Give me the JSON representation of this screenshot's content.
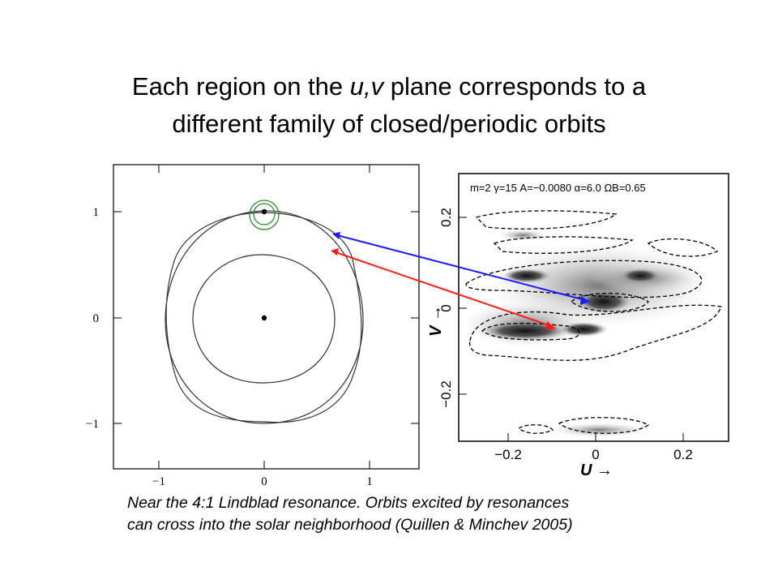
{
  "slide": {
    "title_line1_prefix": "Each region on the ",
    "title_line1_emph": "u,v",
    "title_line1_suffix": " plane corresponds to a",
    "title_line2": "different family of closed/periodic orbits",
    "caption_line1": "Near the 4:1 Lindblad resonance. Orbits excited by resonances",
    "caption_line2": "can cross into the solar neighborhood (Quillen & Minchev 2005)"
  },
  "orbit_panel": {
    "y_ticks": [
      "1",
      "0",
      "−1"
    ],
    "x_ticks": [
      "−1",
      "0",
      "1"
    ]
  },
  "uv_panel": {
    "header": "m=2  γ=15  A=−0.0080  α=6.0  ΩB=0.65",
    "y_ticks": [
      "0.2",
      "0",
      "−0.2"
    ],
    "x_ticks": [
      "−0.2",
      "0",
      "0.2"
    ],
    "u_label": "U →",
    "v_label": "V →"
  },
  "colors": {
    "blue_arrow": "#1a1aff",
    "red_arrow": "#ff1a1a",
    "circle": "#2e8b2e"
  }
}
